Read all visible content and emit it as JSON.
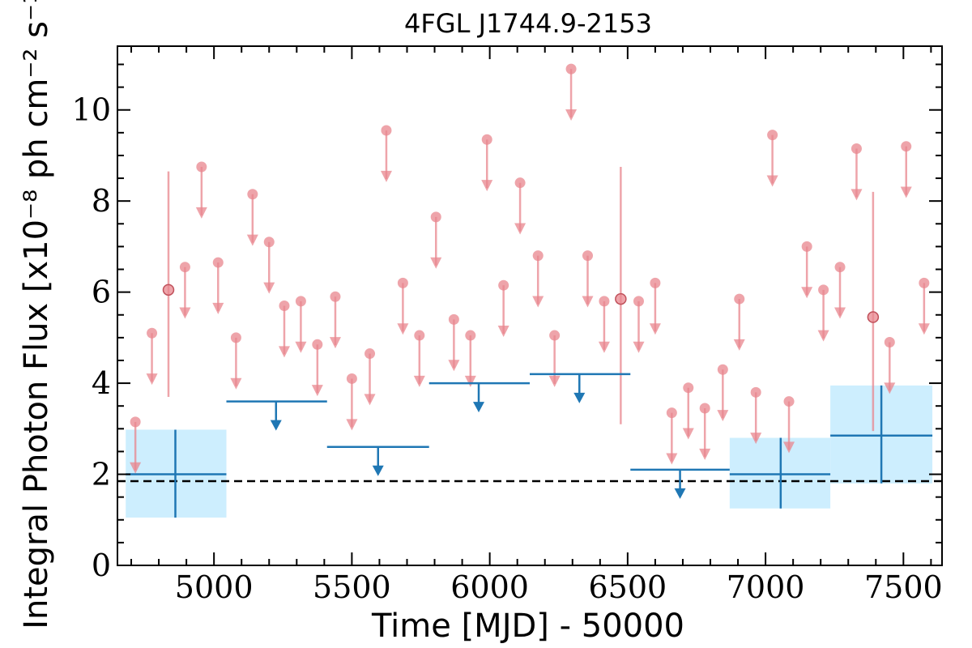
{
  "chart_data": {
    "type": "scatter",
    "title": "4FGL J1744.9-2153",
    "xlabel": "Time [MJD] - 50000",
    "ylabel": "Integral Photon Flux [x10⁻⁸ ph cm⁻² s⁻¹]",
    "xlim": [
      4650,
      7640
    ],
    "ylim": [
      0,
      11.4
    ],
    "xticks": [
      5000,
      5500,
      6000,
      6500,
      7000,
      7500
    ],
    "xtick_labels": [
      "5000",
      "5500",
      "6000",
      "6500",
      "7000",
      "7500"
    ],
    "yticks": [
      0,
      2,
      4,
      6,
      8,
      10
    ],
    "ytick_labels": [
      "0",
      "2",
      "4",
      "6",
      "8",
      "10"
    ],
    "grid": false,
    "reference_line": {
      "y": 1.85,
      "style": "dashed",
      "color": "#000000"
    },
    "colors": {
      "short_bins": "#e8868e",
      "long_bins": "#1f77b4",
      "error_box": "#cdeefe"
    },
    "short_bin_upper_limits": [
      {
        "x": 4715,
        "y": 3.15
      },
      {
        "x": 4775,
        "y": 5.1
      },
      {
        "x": 4895,
        "y": 6.55
      },
      {
        "x": 4955,
        "y": 8.75
      },
      {
        "x": 5015,
        "y": 6.65
      },
      {
        "x": 5080,
        "y": 5.0
      },
      {
        "x": 5140,
        "y": 8.15
      },
      {
        "x": 5200,
        "y": 7.1
      },
      {
        "x": 5255,
        "y": 5.7
      },
      {
        "x": 5315,
        "y": 5.8
      },
      {
        "x": 5375,
        "y": 4.85
      },
      {
        "x": 5440,
        "y": 5.9
      },
      {
        "x": 5500,
        "y": 4.1
      },
      {
        "x": 5565,
        "y": 4.65
      },
      {
        "x": 5625,
        "y": 9.55
      },
      {
        "x": 5685,
        "y": 6.2
      },
      {
        "x": 5745,
        "y": 5.05
      },
      {
        "x": 5805,
        "y": 7.65
      },
      {
        "x": 5870,
        "y": 5.4
      },
      {
        "x": 5930,
        "y": 5.05
      },
      {
        "x": 5990,
        "y": 9.35
      },
      {
        "x": 6050,
        "y": 6.15
      },
      {
        "x": 6110,
        "y": 8.4
      },
      {
        "x": 6175,
        "y": 6.8
      },
      {
        "x": 6235,
        "y": 5.05
      },
      {
        "x": 6295,
        "y": 10.9
      },
      {
        "x": 6355,
        "y": 6.8
      },
      {
        "x": 6415,
        "y": 5.8
      },
      {
        "x": 6540,
        "y": 5.8
      },
      {
        "x": 6600,
        "y": 6.2
      },
      {
        "x": 6660,
        "y": 3.35
      },
      {
        "x": 6720,
        "y": 3.9
      },
      {
        "x": 6780,
        "y": 3.45
      },
      {
        "x": 6845,
        "y": 4.3
      },
      {
        "x": 6905,
        "y": 5.85
      },
      {
        "x": 6965,
        "y": 3.8
      },
      {
        "x": 7025,
        "y": 9.45
      },
      {
        "x": 7085,
        "y": 3.6
      },
      {
        "x": 7150,
        "y": 7.0
      },
      {
        "x": 7210,
        "y": 6.05
      },
      {
        "x": 7270,
        "y": 6.55
      },
      {
        "x": 7330,
        "y": 9.15
      },
      {
        "x": 7450,
        "y": 4.9
      },
      {
        "x": 7510,
        "y": 9.2
      },
      {
        "x": 7575,
        "y": 6.2
      }
    ],
    "short_bin_detections": [
      {
        "x": 4835,
        "y": 6.05,
        "ylow": 3.7,
        "yhigh": 8.65
      },
      {
        "x": 6475,
        "y": 5.85,
        "ylow": 3.1,
        "yhigh": 8.75
      },
      {
        "x": 7390,
        "y": 5.45,
        "ylow": 2.95,
        "yhigh": 8.2
      }
    ],
    "long_bin_detections": [
      {
        "x": 4860,
        "xlow": 4680,
        "xhigh": 5045,
        "y": 2.0,
        "ylow": 1.05,
        "yhigh": 2.98
      },
      {
        "x": 7055,
        "xlow": 6870,
        "xhigh": 7235,
        "y": 2.0,
        "ylow": 1.25,
        "yhigh": 2.8
      },
      {
        "x": 7420,
        "xlow": 7235,
        "xhigh": 7605,
        "y": 2.85,
        "ylow": 1.8,
        "yhigh": 3.95
      }
    ],
    "long_bin_upper_limits": [
      {
        "x": 5225,
        "xlow": 5045,
        "xhigh": 5410,
        "y": 3.6
      },
      {
        "x": 5595,
        "xlow": 5410,
        "xhigh": 5780,
        "y": 2.6
      },
      {
        "x": 5960,
        "xlow": 5780,
        "xhigh": 6145,
        "y": 4.0
      },
      {
        "x": 6325,
        "xlow": 6145,
        "xhigh": 6510,
        "y": 4.2
      },
      {
        "x": 6690,
        "xlow": 6510,
        "xhigh": 6870,
        "y": 2.1
      }
    ]
  }
}
